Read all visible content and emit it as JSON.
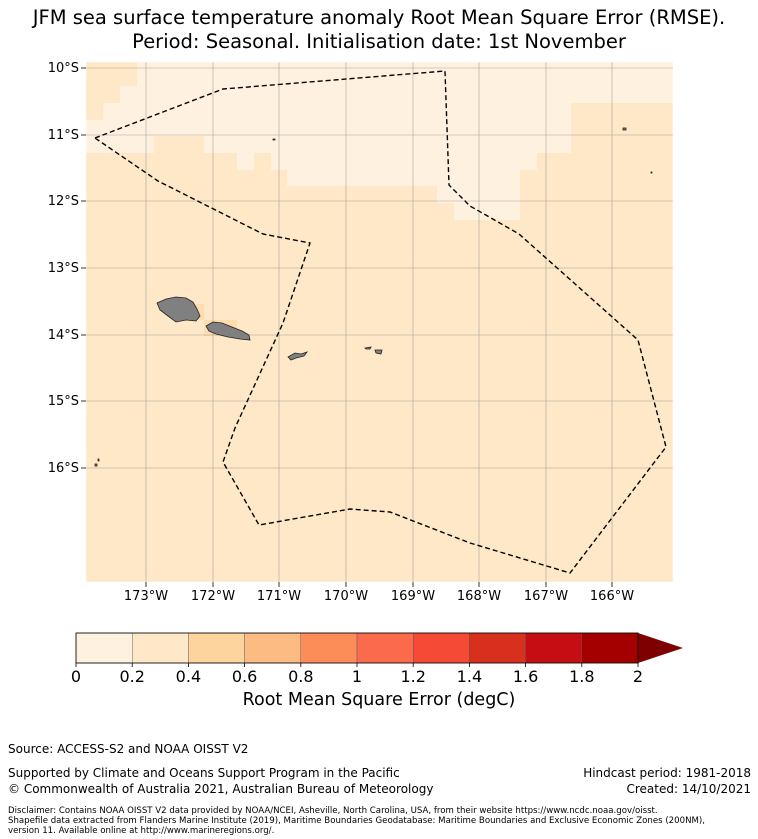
{
  "title_line1": "JFM sea surface temperature anomaly Root Mean Square Error (RMSE).",
  "title_line2": "Period: Seasonal. Initialisation date: 1st November",
  "map": {
    "lat_labels": [
      "10°S",
      "11°S",
      "12°S",
      "13°S",
      "14°S",
      "15°S",
      "16°S"
    ],
    "lon_labels": [
      "173°W",
      "172°W",
      "171°W",
      "170°W",
      "169°W",
      "168°W",
      "167°W",
      "166°W"
    ],
    "ocean_color": "#fee8c8",
    "land_color": "#808080",
    "boundary_style": "dashed"
  },
  "colorbar": {
    "tick_labels": [
      "0",
      "0.2",
      "0.4",
      "0.6",
      "0.8",
      "1",
      "1.2",
      "1.4",
      "1.6",
      "1.8",
      "2"
    ],
    "colors": [
      "#fff1df",
      "#fee8c8",
      "#fdd49e",
      "#fdbb84",
      "#fc8d59",
      "#fc6a4c",
      "#f44a36",
      "#d7301f",
      "#c70d14",
      "#a50000"
    ],
    "extend_color": "#7f0000",
    "label": "Root Mean Square Error (degC)"
  },
  "footer": {
    "source": "Source: ACCESS-S2 and NOAA OISST V2",
    "supported": "Supported by Climate and Oceans Support Program in the Pacific",
    "copyright": "© Commonwealth of Australia 2021, Australian Bureau of Meteorology",
    "hindcast": "Hindcast period: 1981-2018",
    "created": "Created: 14/10/2021",
    "disclaimer_1": "Disclaimer: Contains NOAA OISST V2 data provided by NOAA/NCEI, Asheville, North Carolina, USA, from their website https://www.ncdc.noaa.gov/oisst.",
    "disclaimer_2": "Shapefile data extracted from Flanders Marine Institute (2019), Maritime Boundaries Geodatabase: Maritime Boundaries and Exclusive Economic Zones (200NM),",
    "disclaimer_3": "version 11. Available online at http://www.marineregions.org/."
  }
}
